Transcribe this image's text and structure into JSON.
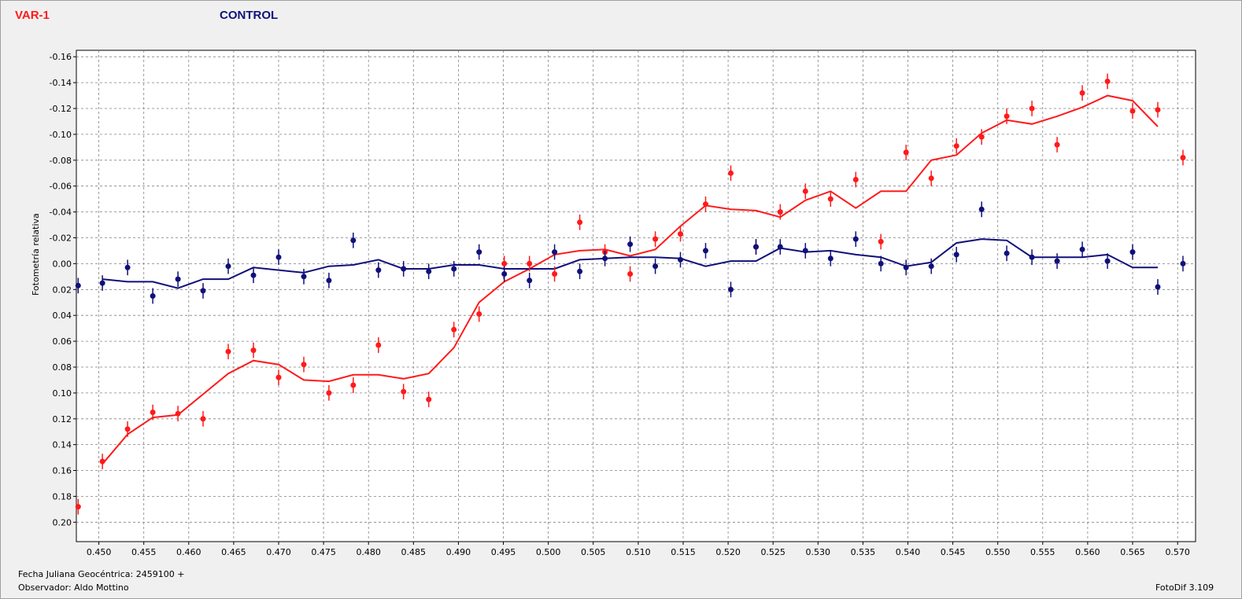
{
  "legend": {
    "var_label": "VAR-1",
    "ctrl_label": "CONTROL"
  },
  "footer": {
    "date_label": "Fecha Juliana Geocéntrica: 2459100 +",
    "observer_label": "Observador: Aldo Mottino",
    "version_label": "FotoDif 3.109"
  },
  "colors": {
    "var": "#ff1a1a",
    "ctrl": "#10107a",
    "grid": "#808080",
    "plot_bg": "#ffffff"
  },
  "chart_data": {
    "type": "scatter",
    "ylabel": "Fotometría relativa",
    "xlim": [
      0.4475,
      0.572
    ],
    "ylim": [
      0.215,
      -0.165
    ],
    "y_inverted": true,
    "grid": true,
    "x_ticks": [
      0.45,
      0.455,
      0.46,
      0.465,
      0.47,
      0.475,
      0.48,
      0.485,
      0.49,
      0.495,
      0.5,
      0.505,
      0.51,
      0.515,
      0.52,
      0.525,
      0.53,
      0.535,
      0.54,
      0.545,
      0.55,
      0.555,
      0.56,
      0.565,
      0.57
    ],
    "x_tick_labels": [
      "0.450",
      "0.455",
      "0.460",
      "0.465",
      "0.470",
      "0.475",
      "0.480",
      "0.485",
      "0.490",
      "0.495",
      "0.500",
      "0.505",
      "0.510",
      "0.515",
      "0.520",
      "0.525",
      "0.530",
      "0.535",
      "0.540",
      "0.545",
      "0.550",
      "0.555",
      "0.560",
      "0.565",
      "0.570"
    ],
    "y_ticks": [
      -0.16,
      -0.14,
      -0.12,
      -0.1,
      -0.08,
      -0.06,
      -0.04,
      -0.02,
      0.0,
      0.02,
      0.04,
      0.06,
      0.08,
      0.1,
      0.12,
      0.14,
      0.16,
      0.18,
      0.2
    ],
    "y_tick_labels": [
      "-0.16",
      "-0.14",
      "-0.12",
      "-0.10",
      "-0.08",
      "-0.06",
      "-0.04",
      "-0.02",
      "0.00",
      "0.02",
      "0.04",
      "0.06",
      "0.08",
      "0.10",
      "0.12",
      "0.14",
      "0.16",
      "0.18",
      "0.20"
    ],
    "error_bar": 0.006,
    "series": [
      {
        "name": "VAR-1",
        "color": "#ff1a1a",
        "points": [
          [
            0.4477,
            0.188
          ],
          [
            0.4504,
            0.153
          ],
          [
            0.4532,
            0.128
          ],
          [
            0.456,
            0.115
          ],
          [
            0.4588,
            0.116
          ],
          [
            0.4616,
            0.12
          ],
          [
            0.4644,
            0.068
          ],
          [
            0.4672,
            0.067
          ],
          [
            0.47,
            0.088
          ],
          [
            0.4728,
            0.078
          ],
          [
            0.4756,
            0.1
          ],
          [
            0.4783,
            0.094
          ],
          [
            0.4811,
            0.063
          ],
          [
            0.4839,
            0.099
          ],
          [
            0.4867,
            0.105
          ],
          [
            0.4895,
            0.051
          ],
          [
            0.4923,
            0.039
          ],
          [
            0.4951,
            0.0
          ],
          [
            0.4979,
            0.0
          ],
          [
            0.5007,
            0.008
          ],
          [
            0.5035,
            -0.032
          ],
          [
            0.5063,
            -0.009
          ],
          [
            0.5091,
            0.008
          ],
          [
            0.5119,
            -0.019
          ],
          [
            0.5147,
            -0.023
          ],
          [
            0.5175,
            -0.046
          ],
          [
            0.5203,
            -0.07
          ],
          [
            0.5231,
            -0.013
          ],
          [
            0.5258,
            -0.04
          ],
          [
            0.5286,
            -0.056
          ],
          [
            0.5314,
            -0.05
          ],
          [
            0.5342,
            -0.065
          ],
          [
            0.537,
            -0.017
          ],
          [
            0.5398,
            -0.086
          ],
          [
            0.5426,
            -0.066
          ],
          [
            0.5454,
            -0.091
          ],
          [
            0.5482,
            -0.098
          ],
          [
            0.551,
            -0.114
          ],
          [
            0.5538,
            -0.12
          ],
          [
            0.5566,
            -0.092
          ],
          [
            0.5594,
            -0.132
          ],
          [
            0.5622,
            -0.141
          ],
          [
            0.565,
            -0.118
          ],
          [
            0.5678,
            -0.119
          ],
          [
            0.5706,
            -0.082
          ]
        ],
        "trend": [
          [
            0.4504,
            0.155
          ],
          [
            0.4532,
            0.132
          ],
          [
            0.456,
            0.119
          ],
          [
            0.4588,
            0.117
          ],
          [
            0.4616,
            0.101
          ],
          [
            0.4644,
            0.085
          ],
          [
            0.4672,
            0.075
          ],
          [
            0.47,
            0.078
          ],
          [
            0.4728,
            0.09
          ],
          [
            0.4756,
            0.091
          ],
          [
            0.4783,
            0.086
          ],
          [
            0.4811,
            0.086
          ],
          [
            0.4839,
            0.089
          ],
          [
            0.4867,
            0.085
          ],
          [
            0.4895,
            0.065
          ],
          [
            0.4923,
            0.03
          ],
          [
            0.4951,
            0.014
          ],
          [
            0.4979,
            0.004
          ],
          [
            0.5007,
            -0.007
          ],
          [
            0.5035,
            -0.01
          ],
          [
            0.5063,
            -0.011
          ],
          [
            0.5091,
            -0.006
          ],
          [
            0.5119,
            -0.011
          ],
          [
            0.5147,
            -0.029
          ],
          [
            0.5175,
            -0.045
          ],
          [
            0.5203,
            -0.042
          ],
          [
            0.5231,
            -0.041
          ],
          [
            0.5258,
            -0.036
          ],
          [
            0.5286,
            -0.049
          ],
          [
            0.5314,
            -0.056
          ],
          [
            0.5342,
            -0.043
          ],
          [
            0.537,
            -0.056
          ],
          [
            0.5398,
            -0.056
          ],
          [
            0.5426,
            -0.08
          ],
          [
            0.5454,
            -0.084
          ],
          [
            0.5482,
            -0.101
          ],
          [
            0.551,
            -0.111
          ],
          [
            0.5538,
            -0.108
          ],
          [
            0.5566,
            -0.114
          ],
          [
            0.5594,
            -0.121
          ],
          [
            0.5622,
            -0.13
          ],
          [
            0.565,
            -0.126
          ],
          [
            0.5678,
            -0.106
          ]
        ]
      },
      {
        "name": "CONTROL",
        "color": "#10107a",
        "points": [
          [
            0.4477,
            0.017
          ],
          [
            0.4504,
            0.015
          ],
          [
            0.4532,
            0.003
          ],
          [
            0.456,
            0.025
          ],
          [
            0.4588,
            0.012
          ],
          [
            0.4616,
            0.021
          ],
          [
            0.4644,
            0.002
          ],
          [
            0.4672,
            0.009
          ],
          [
            0.47,
            -0.005
          ],
          [
            0.4728,
            0.01
          ],
          [
            0.4756,
            0.013
          ],
          [
            0.4783,
            -0.018
          ],
          [
            0.4811,
            0.005
          ],
          [
            0.4839,
            0.004
          ],
          [
            0.4867,
            0.006
          ],
          [
            0.4895,
            0.004
          ],
          [
            0.4923,
            -0.009
          ],
          [
            0.4951,
            0.008
          ],
          [
            0.4979,
            0.013
          ],
          [
            0.5007,
            -0.009
          ],
          [
            0.5035,
            0.006
          ],
          [
            0.5063,
            -0.004
          ],
          [
            0.5091,
            -0.015
          ],
          [
            0.5119,
            0.002
          ],
          [
            0.5147,
            -0.003
          ],
          [
            0.5175,
            -0.01
          ],
          [
            0.5203,
            0.02
          ],
          [
            0.5231,
            -0.013
          ],
          [
            0.5258,
            -0.013
          ],
          [
            0.5286,
            -0.01
          ],
          [
            0.5314,
            -0.004
          ],
          [
            0.5342,
            -0.019
          ],
          [
            0.537,
            0.0
          ],
          [
            0.5398,
            0.003
          ],
          [
            0.5426,
            0.002
          ],
          [
            0.5454,
            -0.007
          ],
          [
            0.5482,
            -0.042
          ],
          [
            0.551,
            -0.008
          ],
          [
            0.5538,
            -0.005
          ],
          [
            0.5566,
            -0.002
          ],
          [
            0.5594,
            -0.011
          ],
          [
            0.5622,
            -0.002
          ],
          [
            0.565,
            -0.009
          ],
          [
            0.5678,
            0.018
          ],
          [
            0.5706,
            0.0
          ]
        ],
        "trend": [
          [
            0.4504,
            0.012
          ],
          [
            0.4532,
            0.014
          ],
          [
            0.456,
            0.014
          ],
          [
            0.4588,
            0.019
          ],
          [
            0.4616,
            0.012
          ],
          [
            0.4644,
            0.012
          ],
          [
            0.4672,
            0.003
          ],
          [
            0.47,
            0.005
          ],
          [
            0.4728,
            0.007
          ],
          [
            0.4756,
            0.002
          ],
          [
            0.4783,
            0.001
          ],
          [
            0.4811,
            -0.003
          ],
          [
            0.4839,
            0.004
          ],
          [
            0.4867,
            0.004
          ],
          [
            0.4895,
            0.001
          ],
          [
            0.4923,
            0.001
          ],
          [
            0.4951,
            0.004
          ],
          [
            0.4979,
            0.004
          ],
          [
            0.5007,
            0.004
          ],
          [
            0.5035,
            -0.003
          ],
          [
            0.5063,
            -0.004
          ],
          [
            0.5091,
            -0.005
          ],
          [
            0.5119,
            -0.005
          ],
          [
            0.5147,
            -0.004
          ],
          [
            0.5175,
            0.002
          ],
          [
            0.5203,
            -0.002
          ],
          [
            0.5231,
            -0.002
          ],
          [
            0.5258,
            -0.012
          ],
          [
            0.5286,
            -0.009
          ],
          [
            0.5314,
            -0.01
          ],
          [
            0.5342,
            -0.007
          ],
          [
            0.537,
            -0.005
          ],
          [
            0.5398,
            0.002
          ],
          [
            0.5426,
            -0.001
          ],
          [
            0.5454,
            -0.016
          ],
          [
            0.5482,
            -0.019
          ],
          [
            0.551,
            -0.018
          ],
          [
            0.5538,
            -0.005
          ],
          [
            0.5566,
            -0.005
          ],
          [
            0.5594,
            -0.005
          ],
          [
            0.5622,
            -0.007
          ],
          [
            0.565,
            0.003
          ],
          [
            0.5678,
            0.003
          ]
        ]
      }
    ]
  }
}
